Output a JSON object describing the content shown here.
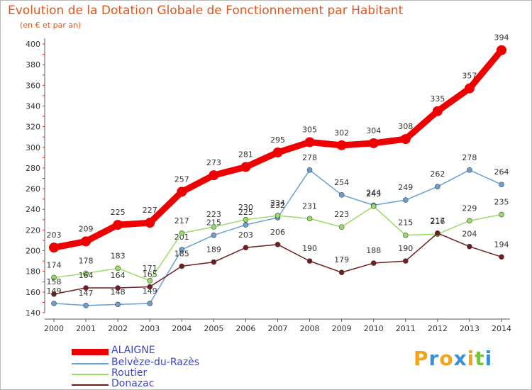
{
  "title": "Evolution de la Dotation Globale de Fonctionnement par Habitant",
  "subtitle": "(en € et par an)",
  "brand": {
    "text": "Proxiti",
    "letters": [
      {
        "ch": "P",
        "color": "#f2a31b"
      },
      {
        "ch": "r",
        "color": "#3a8fd9"
      },
      {
        "ch": "o",
        "color": "#f2a31b"
      },
      {
        "ch": "x",
        "color": "#3a8fd9"
      },
      {
        "ch": "i",
        "color": "#f2a31b"
      },
      {
        "ch": "t",
        "color": "#7cc242"
      },
      {
        "ch": "i",
        "color": "#3a8fd9"
      }
    ]
  },
  "legend": [
    {
      "label": "ALAIGNE",
      "color": "#ee0000"
    },
    {
      "label": "Belvèze-du-Razès",
      "color": "#6a9fd0"
    },
    {
      "label": "Routier",
      "color": "#98dd66"
    },
    {
      "label": "Donazac",
      "color": "#6e1e1e"
    }
  ],
  "chart_data": {
    "type": "line",
    "title": "Evolution de la Dotation Globale de Fonctionnement par Habitant",
    "subtitle": "(en € et par an)",
    "x": [
      "2000",
      "2001",
      "2002",
      "2003",
      "2004",
      "2005",
      "2006",
      "2007",
      "2008",
      "2009",
      "2010",
      "2011",
      "2012",
      "2013",
      "2014"
    ],
    "ylim": [
      140,
      400
    ],
    "yticks": [
      140,
      160,
      180,
      200,
      220,
      240,
      260,
      280,
      300,
      320,
      340,
      360,
      380,
      400
    ],
    "grid": false,
    "legend_position": "bottom-left",
    "series": [
      {
        "name": "ALAIGNE",
        "color": "#ee0000",
        "values": [
          203,
          209,
          225,
          227,
          257,
          273,
          281,
          295,
          305,
          302,
          304,
          308,
          335,
          357,
          394
        ]
      },
      {
        "name": "Belvèze-du-Razès",
        "color": "#6a9fd0",
        "values": [
          149,
          147,
          148,
          149,
          201,
          215,
          225,
          232,
          278,
          254,
          244,
          249,
          262,
          278,
          264
        ]
      },
      {
        "name": "Routier",
        "color": "#98dd66",
        "values": [
          174,
          178,
          183,
          171,
          217,
          223,
          230,
          234,
          231,
          223,
          243,
          215,
          216,
          229,
          235
        ]
      },
      {
        "name": "Donazac",
        "color": "#6e1e1e",
        "values": [
          158,
          164,
          164,
          165,
          185,
          189,
          203,
          206,
          190,
          179,
          188,
          190,
          217,
          204,
          194
        ]
      }
    ]
  }
}
